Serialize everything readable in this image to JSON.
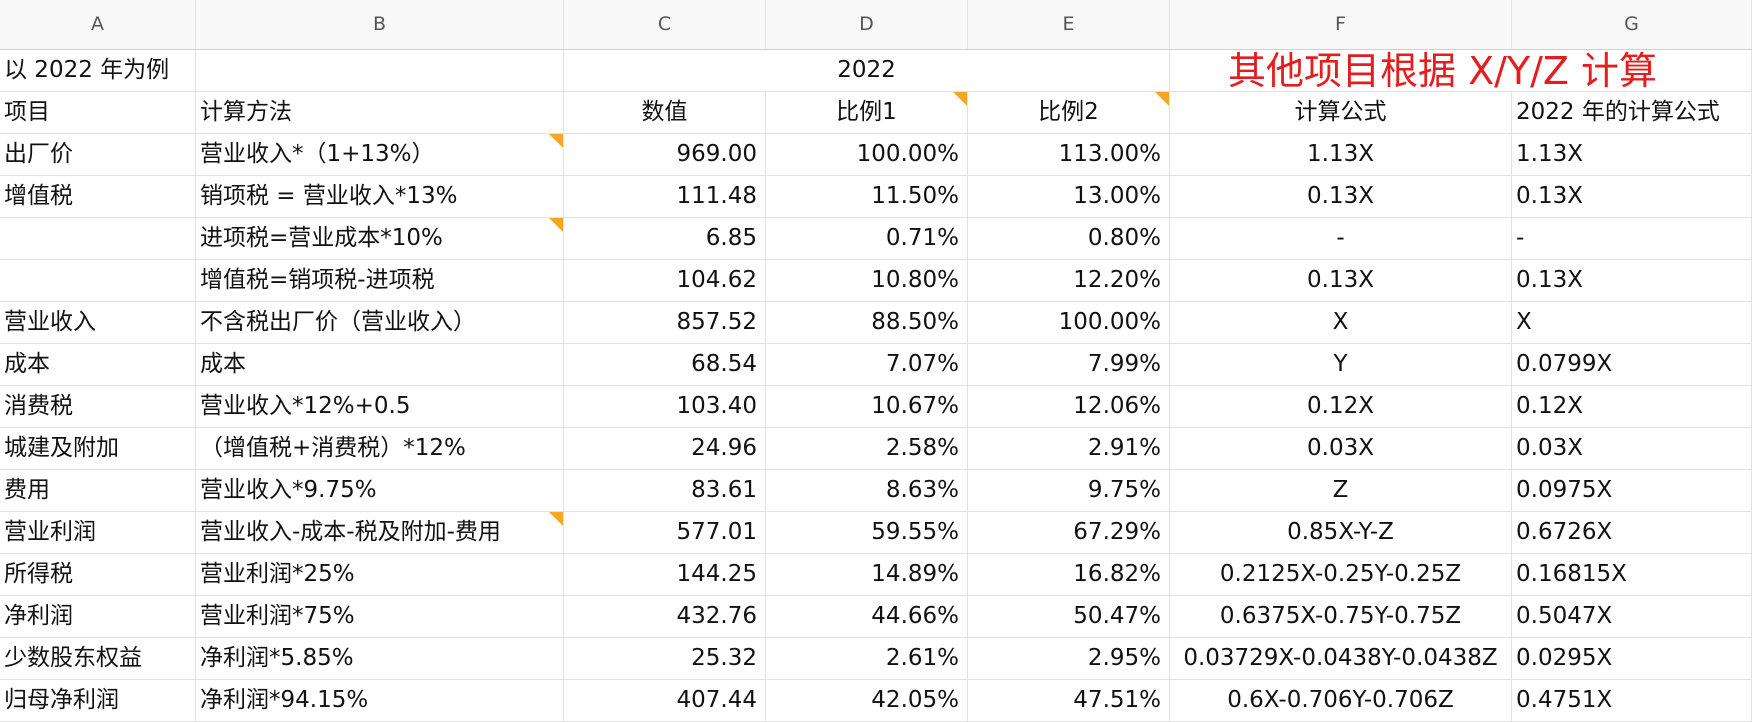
{
  "column_headers": [
    "A",
    "B",
    "C",
    "D",
    "E",
    "F",
    "G"
  ],
  "title_row": {
    "a": "以 2022 年为例",
    "year": "2022",
    "note": "其他项目根据 X/Y/Z 计算"
  },
  "header_row": {
    "a": "项目",
    "b": "计算方法",
    "c": "数值",
    "d": "比例1",
    "e": "比例2",
    "f": "计算公式",
    "g": "2022 年的计算公式"
  },
  "rows": [
    {
      "a": "出厂价",
      "b": "营业收入*（1+13%）",
      "c": "969.00",
      "d": "100.00%",
      "e": "113.00%",
      "f": "1.13X",
      "g": "1.13X"
    },
    {
      "a": "增值税",
      "b": "销项税 = 营业收入*13%",
      "c": "111.48",
      "d": "11.50%",
      "e": "13.00%",
      "f": "0.13X",
      "g": "0.13X"
    },
    {
      "a": "",
      "b": "进项税=营业成本*10%",
      "c": "6.85",
      "d": "0.71%",
      "e": "0.80%",
      "f": "-",
      "g": "-"
    },
    {
      "a": "",
      "b": "增值税=销项税-进项税",
      "c": "104.62",
      "d": "10.80%",
      "e": "12.20%",
      "f": "0.13X",
      "g": "0.13X"
    },
    {
      "a": "营业收入",
      "b": "不含税出厂价（营业收入）",
      "c": "857.52",
      "d": "88.50%",
      "e": "100.00%",
      "f": "X",
      "g": "X"
    },
    {
      "a": "成本",
      "b": "成本",
      "c": "68.54",
      "d": "7.07%",
      "e": "7.99%",
      "f": "Y",
      "g": "0.0799X"
    },
    {
      "a": "消费税",
      "b": "营业收入*12%+0.5",
      "c": "103.40",
      "d": "10.67%",
      "e": "12.06%",
      "f": "0.12X",
      "g": "0.12X"
    },
    {
      "a": "城建及附加",
      "b": "（增值税+消费税）*12%",
      "c": "24.96",
      "d": "2.58%",
      "e": "2.91%",
      "f": "0.03X",
      "g": "0.03X"
    },
    {
      "a": "费用",
      "b": "营业收入*9.75%",
      "c": "83.61",
      "d": "8.63%",
      "e": "9.75%",
      "f": "Z",
      "g": "0.0975X"
    },
    {
      "a": "营业利润",
      "b": "营业收入-成本-税及附加-费用",
      "c": "577.01",
      "d": "59.55%",
      "e": "67.29%",
      "f": "0.85X-Y-Z",
      "g": "0.6726X"
    },
    {
      "a": "所得税",
      "b": "营业利润*25%",
      "c": "144.25",
      "d": "14.89%",
      "e": "16.82%",
      "f": "0.2125X-0.25Y-0.25Z",
      "g": "0.16815X"
    },
    {
      "a": "净利润",
      "b": "营业利润*75%",
      "c": "432.76",
      "d": "44.66%",
      "e": "50.47%",
      "f": "0.6375X-0.75Y-0.75Z",
      "g": "0.5047X"
    },
    {
      "a": "少数股东权益",
      "b": "净利润*5.85%",
      "c": "25.32",
      "d": "2.61%",
      "e": "2.95%",
      "f": "0.03729X-0.0438Y-0.0438Z",
      "g": "0.0295X"
    },
    {
      "a": "归母净利润",
      "b": "净利润*94.15%",
      "c": "407.44",
      "d": "42.05%",
      "e": "47.51%",
      "f": "0.6X-0.706Y-0.706Z",
      "g": "0.4751X"
    }
  ],
  "colors": {
    "note_text": "#e41e1e",
    "comment_marker": "#f5a623",
    "header_bg": "#f8f8f8"
  }
}
